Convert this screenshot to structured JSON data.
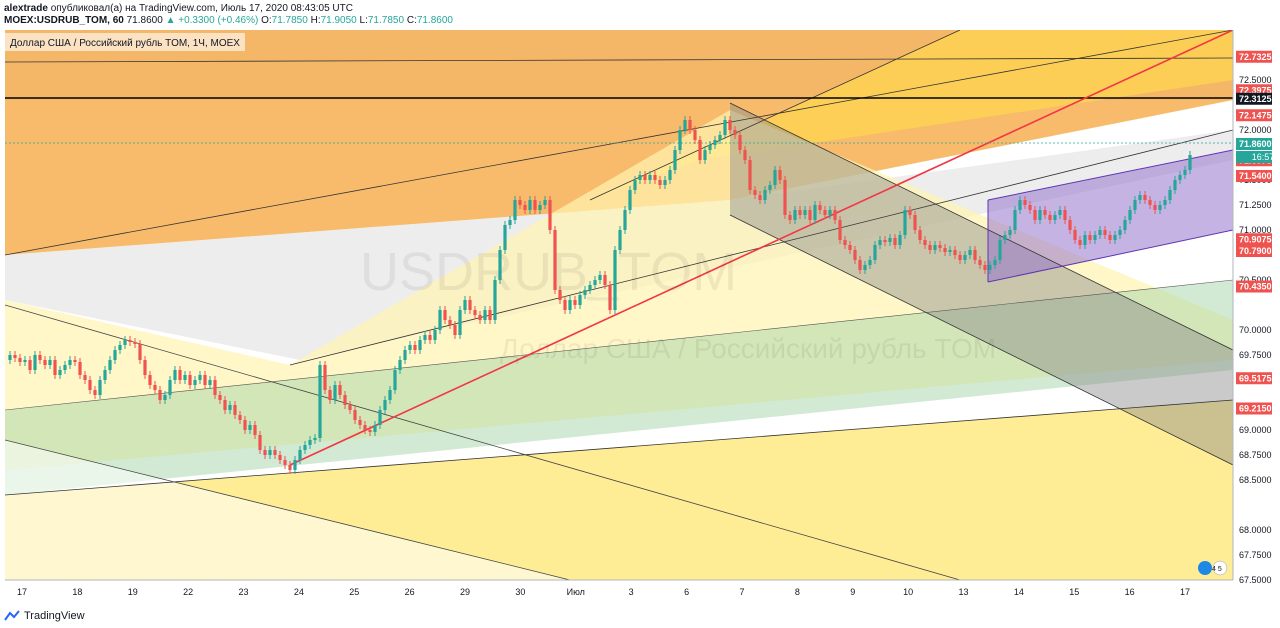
{
  "header": {
    "author": "alextrade",
    "published_text": "опубликовал(а) на TradingView.com, Июль 17, 2020 08:43:05 UTC",
    "symbol": "MOEX:USDRUB_TOM, 60",
    "last": "71.8600",
    "change": "+0.3300 (+0.46%)",
    "o_label": "O:",
    "o": "71.7850",
    "h_label": "H:",
    "h": "71.9050",
    "l_label": "L:",
    "l": "71.7850",
    "c_label": "C:",
    "c": "71.8600"
  },
  "legend": {
    "text": "Доллар США / Российский рубль TOM, 1Ч, MOEX"
  },
  "watermark": {
    "symbol": "USDRUB_TOM",
    "name": "Доллар США / Российский рубль TOM"
  },
  "footer": {
    "brand": "TradingView"
  },
  "countdown": "16:57",
  "flag_badge": "4 5",
  "chart_data": {
    "type": "candlestick",
    "ylim": [
      67.5,
      73.0
    ],
    "y_ticks": [
      "72.5000",
      "72.0000",
      "71.5000",
      "71.2500",
      "71.0000",
      "70.5000",
      "70.0000",
      "69.7500",
      "69.0000",
      "68.7500",
      "68.5000",
      "68.0000",
      "67.7500",
      "67.5000"
    ],
    "y_tick_values": [
      72.5,
      72.0,
      71.5,
      71.25,
      71.0,
      70.5,
      70.0,
      69.75,
      69.0,
      68.75,
      68.5,
      68.0,
      67.75,
      67.5
    ],
    "x_labels": [
      "17",
      "18",
      "19",
      "22",
      "23",
      "24",
      "25",
      "26",
      "29",
      "30",
      "Июл",
      "3",
      "6",
      "7",
      "8",
      "9",
      "10",
      "13",
      "14",
      "15",
      "16",
      "17"
    ],
    "price_labels": [
      {
        "text": "72.7325",
        "value": 72.7325,
        "color": "#ef5350"
      },
      {
        "text": "72.3975",
        "value": 72.3975,
        "color": "#ef5350"
      },
      {
        "text": "72.3125",
        "value": 72.3125,
        "color": "#131722"
      },
      {
        "text": "72.1475",
        "value": 72.1475,
        "color": "#ef5350"
      },
      {
        "text": "71.8600",
        "value": 71.86,
        "color": "#26a69a"
      },
      {
        "text": "71.6975",
        "value": 71.6975,
        "color": "#ef5350"
      },
      {
        "text": "71.5400",
        "value": 71.54,
        "color": "#ef5350"
      },
      {
        "text": "70.9075",
        "value": 70.9075,
        "color": "#ef5350"
      },
      {
        "text": "70.7900",
        "value": 70.79,
        "color": "#ef5350"
      },
      {
        "text": "70.4350",
        "value": 70.435,
        "color": "#ef5350"
      },
      {
        "text": "69.5175",
        "value": 69.5175,
        "color": "#ef5350"
      },
      {
        "text": "69.2150",
        "value": 69.215,
        "color": "#ef5350"
      }
    ],
    "close_path": [
      [
        0,
        69.7
      ],
      [
        5,
        69.75
      ],
      [
        10,
        69.72
      ],
      [
        15,
        69.68
      ],
      [
        20,
        69.7
      ],
      [
        25,
        69.6
      ],
      [
        30,
        69.75
      ],
      [
        35,
        69.7
      ],
      [
        40,
        69.65
      ],
      [
        45,
        69.7
      ],
      [
        50,
        69.55
      ],
      [
        55,
        69.6
      ],
      [
        60,
        69.65
      ],
      [
        65,
        69.7
      ],
      [
        70,
        69.68
      ],
      [
        75,
        69.55
      ],
      [
        80,
        69.5
      ],
      [
        85,
        69.4
      ],
      [
        90,
        69.35
      ],
      [
        95,
        69.5
      ],
      [
        100,
        69.6
      ],
      [
        105,
        69.7
      ],
      [
        110,
        69.8
      ],
      [
        115,
        69.85
      ],
      [
        120,
        69.9
      ],
      [
        125,
        69.88
      ],
      [
        130,
        69.86
      ],
      [
        135,
        69.7
      ],
      [
        140,
        69.55
      ],
      [
        145,
        69.45
      ],
      [
        150,
        69.4
      ],
      [
        155,
        69.3
      ],
      [
        160,
        69.35
      ],
      [
        165,
        69.5
      ],
      [
        170,
        69.6
      ],
      [
        175,
        69.5
      ],
      [
        180,
        69.55
      ],
      [
        185,
        69.45
      ],
      [
        190,
        69.5
      ],
      [
        195,
        69.55
      ],
      [
        200,
        69.45
      ],
      [
        205,
        69.5
      ],
      [
        210,
        69.35
      ],
      [
        215,
        69.3
      ],
      [
        220,
        69.2
      ],
      [
        225,
        69.25
      ],
      [
        230,
        69.15
      ],
      [
        235,
        69.1
      ],
      [
        240,
        69.0
      ],
      [
        245,
        69.05
      ],
      [
        250,
        68.95
      ],
      [
        255,
        68.8
      ],
      [
        260,
        68.75
      ],
      [
        265,
        68.8
      ],
      [
        270,
        68.75
      ],
      [
        275,
        68.7
      ],
      [
        280,
        68.65
      ],
      [
        285,
        68.6
      ],
      [
        290,
        68.7
      ],
      [
        295,
        68.8
      ],
      [
        300,
        68.85
      ],
      [
        305,
        68.9
      ],
      [
        310,
        68.92
      ],
      [
        315,
        69.65
      ],
      [
        320,
        69.4
      ],
      [
        325,
        69.3
      ],
      [
        330,
        69.45
      ],
      [
        335,
        69.35
      ],
      [
        340,
        69.25
      ],
      [
        345,
        69.2
      ],
      [
        350,
        69.1
      ],
      [
        355,
        69.05
      ],
      [
        360,
        69.0
      ],
      [
        365,
        68.98
      ],
      [
        370,
        69.05
      ],
      [
        375,
        69.2
      ],
      [
        380,
        69.3
      ],
      [
        385,
        69.4
      ],
      [
        390,
        69.6
      ],
      [
        395,
        69.7
      ],
      [
        400,
        69.8
      ],
      [
        405,
        69.85
      ],
      [
        410,
        69.8
      ],
      [
        415,
        69.9
      ],
      [
        420,
        69.95
      ],
      [
        425,
        69.9
      ],
      [
        430,
        70.0
      ],
      [
        435,
        70.2
      ],
      [
        440,
        70.1
      ],
      [
        445,
        70.05
      ],
      [
        450,
        69.95
      ],
      [
        455,
        70.2
      ],
      [
        460,
        70.3
      ],
      [
        465,
        70.2
      ],
      [
        470,
        70.15
      ],
      [
        475,
        70.1
      ],
      [
        480,
        70.2
      ],
      [
        485,
        70.1
      ],
      [
        490,
        70.5
      ],
      [
        495,
        70.8
      ],
      [
        500,
        71.05
      ],
      [
        505,
        71.1
      ],
      [
        510,
        71.3
      ],
      [
        515,
        71.25
      ],
      [
        520,
        71.2
      ],
      [
        525,
        71.3
      ],
      [
        530,
        71.2
      ],
      [
        535,
        71.25
      ],
      [
        540,
        71.3
      ],
      [
        545,
        71.0
      ],
      [
        550,
        70.4
      ],
      [
        555,
        70.3
      ],
      [
        560,
        70.2
      ],
      [
        565,
        70.3
      ],
      [
        570,
        70.25
      ],
      [
        575,
        70.35
      ],
      [
        580,
        70.4
      ],
      [
        585,
        70.45
      ],
      [
        590,
        70.5
      ],
      [
        595,
        70.55
      ],
      [
        600,
        70.45
      ],
      [
        605,
        70.2
      ],
      [
        610,
        70.8
      ],
      [
        615,
        71.0
      ],
      [
        620,
        71.2
      ],
      [
        625,
        71.4
      ],
      [
        630,
        71.5
      ],
      [
        635,
        71.55
      ],
      [
        640,
        71.5
      ],
      [
        645,
        71.55
      ],
      [
        650,
        71.5
      ],
      [
        655,
        71.45
      ],
      [
        660,
        71.5
      ],
      [
        665,
        71.6
      ],
      [
        670,
        71.8
      ],
      [
        675,
        72.0
      ],
      [
        680,
        72.1
      ],
      [
        685,
        72.0
      ],
      [
        690,
        71.9
      ],
      [
        695,
        71.7
      ],
      [
        700,
        71.8
      ],
      [
        705,
        71.85
      ],
      [
        710,
        71.9
      ],
      [
        715,
        71.95
      ],
      [
        720,
        72.1
      ],
      [
        725,
        72.0
      ],
      [
        730,
        71.95
      ],
      [
        735,
        71.8
      ],
      [
        740,
        71.7
      ],
      [
        745,
        71.4
      ],
      [
        750,
        71.35
      ],
      [
        755,
        71.3
      ],
      [
        760,
        71.4
      ],
      [
        765,
        71.45
      ],
      [
        770,
        71.6
      ],
      [
        775,
        71.5
      ],
      [
        780,
        71.15
      ],
      [
        785,
        71.1
      ],
      [
        790,
        71.2
      ],
      [
        795,
        71.15
      ],
      [
        800,
        71.2
      ],
      [
        805,
        71.1
      ],
      [
        810,
        71.25
      ],
      [
        815,
        71.2
      ],
      [
        820,
        71.15
      ],
      [
        825,
        71.2
      ],
      [
        830,
        71.1
      ],
      [
        835,
        70.9
      ],
      [
        840,
        70.85
      ],
      [
        845,
        70.8
      ],
      [
        850,
        70.7
      ],
      [
        855,
        70.6
      ],
      [
        860,
        70.65
      ],
      [
        865,
        70.7
      ],
      [
        870,
        70.85
      ],
      [
        875,
        70.9
      ],
      [
        880,
        70.88
      ],
      [
        885,
        70.92
      ],
      [
        890,
        70.85
      ],
      [
        895,
        70.95
      ],
      [
        900,
        71.2
      ],
      [
        905,
        71.15
      ],
      [
        910,
        71.0
      ],
      [
        915,
        70.9
      ],
      [
        920,
        70.85
      ],
      [
        925,
        70.8
      ],
      [
        930,
        70.85
      ],
      [
        935,
        70.82
      ],
      [
        940,
        70.78
      ],
      [
        945,
        70.8
      ],
      [
        950,
        70.75
      ],
      [
        955,
        70.7
      ],
      [
        960,
        70.75
      ],
      [
        965,
        70.8
      ],
      [
        970,
        70.7
      ],
      [
        975,
        70.65
      ],
      [
        980,
        70.6
      ],
      [
        985,
        70.65
      ],
      [
        990,
        70.7
      ],
      [
        995,
        70.9
      ],
      [
        1000,
        70.95
      ],
      [
        1005,
        71.0
      ],
      [
        1010,
        71.2
      ],
      [
        1015,
        71.3
      ],
      [
        1020,
        71.25
      ],
      [
        1025,
        71.2
      ],
      [
        1030,
        71.1
      ],
      [
        1035,
        71.2
      ],
      [
        1040,
        71.15
      ],
      [
        1045,
        71.1
      ],
      [
        1050,
        71.15
      ],
      [
        1055,
        71.2
      ],
      [
        1060,
        71.1
      ],
      [
        1065,
        71.0
      ],
      [
        1070,
        70.9
      ],
      [
        1075,
        70.85
      ],
      [
        1080,
        70.95
      ],
      [
        1085,
        70.9
      ],
      [
        1090,
        70.95
      ],
      [
        1095,
        71.0
      ],
      [
        1100,
        70.95
      ],
      [
        1105,
        70.9
      ],
      [
        1110,
        70.95
      ],
      [
        1115,
        71.0
      ],
      [
        1120,
        71.1
      ],
      [
        1125,
        71.2
      ],
      [
        1130,
        71.3
      ],
      [
        1135,
        71.35
      ],
      [
        1140,
        71.3
      ],
      [
        1145,
        71.25
      ],
      [
        1150,
        71.2
      ],
      [
        1155,
        71.25
      ],
      [
        1160,
        71.3
      ],
      [
        1165,
        71.4
      ],
      [
        1170,
        71.5
      ],
      [
        1175,
        71.55
      ],
      [
        1180,
        71.6
      ],
      [
        1185,
        71.75
      ],
      [
        1190,
        71.86
      ]
    ]
  },
  "colors": {
    "orange": "#f5a43b",
    "yellow": "#ffe45c",
    "green": "#a5d6a7",
    "purple": "#9575cd",
    "grey": "#9e9e9e",
    "red_line": "#f23645",
    "up": "#26a69a",
    "down": "#ef5350"
  }
}
